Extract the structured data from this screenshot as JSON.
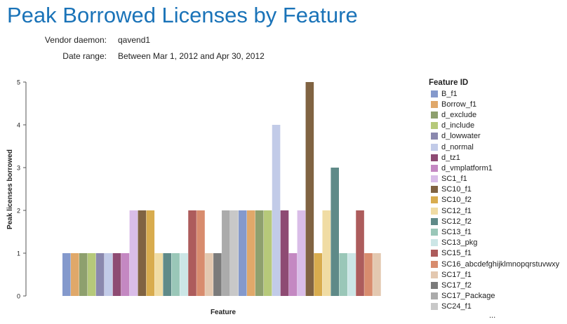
{
  "page": {
    "title": "Peak Borrowed Licenses by Feature",
    "vendor_daemon_label": "Vendor daemon:",
    "vendor_daemon_value": "qavend1",
    "date_range_label": "Date range:",
    "date_range_value": "Between Mar 1, 2012 and Apr 30, 2012"
  },
  "chart_data": {
    "type": "bar",
    "xlabel": "Feature",
    "ylabel": "Peak licenses borrowed",
    "ylim": [
      0,
      5
    ],
    "yticks": [
      0,
      1,
      2,
      3,
      4,
      5
    ],
    "grid": false,
    "legend_title": "Feature ID",
    "legend_placement": "right",
    "legend_more": "...",
    "values": [
      1,
      1,
      1,
      1,
      1,
      1,
      1,
      1,
      2,
      2,
      2,
      1,
      1,
      1,
      1,
      2,
      2,
      1,
      1,
      2,
      2,
      2,
      2,
      2,
      2,
      4,
      2,
      1,
      2,
      5,
      1,
      2,
      3,
      1,
      1,
      2,
      1,
      1
    ],
    "colors": [
      "#8499cc",
      "#e0a86a",
      "#8ea06e",
      "#b6c97a",
      "#8a88ae",
      "#c2cbe8",
      "#8e4b73",
      "#c488c2",
      "#d9bde8",
      "#806342",
      "#d8ac4e",
      "#f0dca4",
      "#5f8a88",
      "#9ac7b8",
      "#cce6e6",
      "#ad5c5c",
      "#d88c6e",
      "#e3c8b0",
      "#7b7b7b",
      "#ababab",
      "#c8c8c8",
      "#8499cc",
      "#e0a86a",
      "#8ea06e",
      "#b6c97a",
      "#c2cbe8",
      "#8e4b73",
      "#c488c2",
      "#d9bde8",
      "#806342",
      "#d8ac4e",
      "#f0dca4",
      "#5f8a88",
      "#9ac7b8",
      "#cce6e6",
      "#ad5c5c",
      "#d88c6e",
      "#e3c8b0"
    ],
    "legend": [
      {
        "name": "B_f1",
        "color": "#8499cc"
      },
      {
        "name": "Borrow_f1",
        "color": "#e0a86a"
      },
      {
        "name": "d_exclude",
        "color": "#8ea06e"
      },
      {
        "name": "d_include",
        "color": "#b6c97a"
      },
      {
        "name": "d_lowwater",
        "color": "#8a88ae"
      },
      {
        "name": "d_normal",
        "color": "#c2cbe8"
      },
      {
        "name": "d_tz1",
        "color": "#8e4b73"
      },
      {
        "name": "d_vmplatform1",
        "color": "#c488c2"
      },
      {
        "name": "SC1_f1",
        "color": "#d9bde8"
      },
      {
        "name": "SC10_f1",
        "color": "#806342"
      },
      {
        "name": "SC10_f2",
        "color": "#d8ac4e"
      },
      {
        "name": "SC12_f1",
        "color": "#f0dca4"
      },
      {
        "name": "SC12_f2",
        "color": "#5f8a88"
      },
      {
        "name": "SC13_f1",
        "color": "#9ac7b8"
      },
      {
        "name": "SC13_pkg",
        "color": "#cce6e6"
      },
      {
        "name": "SC15_f1",
        "color": "#ad5c5c"
      },
      {
        "name": "SC16_abcdefghijklmnopqrstuvwxy",
        "color": "#d88c6e"
      },
      {
        "name": "SC17_f1",
        "color": "#e3c8b0"
      },
      {
        "name": "SC17_f2",
        "color": "#7b7b7b"
      },
      {
        "name": "SC17_Package",
        "color": "#ababab"
      },
      {
        "name": "SC24_f1",
        "color": "#c8c8c8"
      }
    ]
  }
}
